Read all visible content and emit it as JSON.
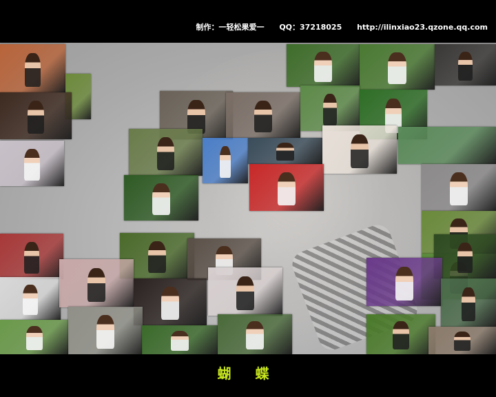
{
  "header": {
    "maker": "制作：一轻松果爱一",
    "qq": "QQ：37218025",
    "url": "http://ilinxiao23.qzone.qq.com"
  },
  "caption": "蝴 蝶",
  "photos": [
    {
      "id": "p1",
      "bg": "#b8643a"
    },
    {
      "id": "p2",
      "bg": "#6c8a3a"
    },
    {
      "id": "p3",
      "bg": "#3d2a20"
    },
    {
      "id": "p4",
      "bg": "#c8c0c8"
    },
    {
      "id": "p5",
      "bg": "#3e6d2a"
    },
    {
      "id": "p6",
      "bg": "#4a7a32"
    },
    {
      "id": "p7",
      "bg": "#3a3836"
    },
    {
      "id": "p8",
      "bg": "#6a6258"
    },
    {
      "id": "p9",
      "bg": "#7a6e66"
    },
    {
      "id": "p10",
      "bg": "#5c8a48"
    },
    {
      "id": "p11",
      "bg": "#2e6e26"
    },
    {
      "id": "p12",
      "bg": "#6a7c4a"
    },
    {
      "id": "p13",
      "bg": "#4a7ec8"
    },
    {
      "id": "p14",
      "bg": "#3a4c5a"
    },
    {
      "id": "p15",
      "bg": "#e8e0d8"
    },
    {
      "id": "p16",
      "bg": "#c82828"
    },
    {
      "id": "p17",
      "bg": "#2e5a24"
    },
    {
      "id": "p18",
      "bg": "#5a8a5a"
    },
    {
      "id": "p19",
      "bg": "#8c8a8a"
    },
    {
      "id": "p20",
      "bg": "#6a8a3a"
    },
    {
      "id": "p21",
      "bg": "#a83838"
    },
    {
      "id": "p22",
      "bg": "#4a6a2a"
    },
    {
      "id": "p23",
      "bg": "#5a5048"
    },
    {
      "id": "p24",
      "bg": "#d8d8d8"
    },
    {
      "id": "p25",
      "bg": "#c8a8a8"
    },
    {
      "id": "p26",
      "bg": "#2a2220"
    },
    {
      "id": "p27",
      "bg": "#d8d0d0"
    },
    {
      "id": "p28",
      "bg": "#6a9a4a"
    },
    {
      "id": "p29",
      "bg": "#909088"
    },
    {
      "id": "p30",
      "bg": "#3a6a2a"
    },
    {
      "id": "p31",
      "bg": "#4a6a3a"
    },
    {
      "id": "p32",
      "bg": "#5a8a3a"
    },
    {
      "id": "p33",
      "bg": "#2e4a22"
    },
    {
      "id": "p34",
      "bg": "#6a3a8a"
    },
    {
      "id": "p35",
      "bg": "#4a6a4a"
    },
    {
      "id": "p36",
      "bg": "#4a7a2a"
    },
    {
      "id": "p37",
      "bg": "#8a7a6a"
    }
  ]
}
